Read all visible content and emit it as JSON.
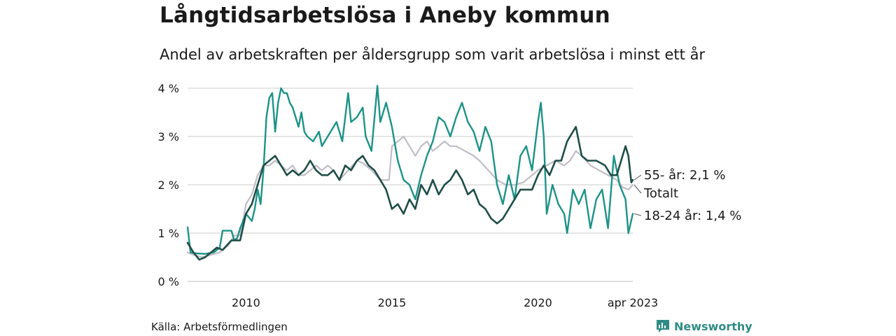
{
  "title": "Långtidsarbetslösa i Aneby kommun",
  "subtitle": "Andel av arbetskraften per åldersgrupp som varit arbetslösa i minst ett år",
  "source": "Källa: Arbetsförmedlingen",
  "brand": "Newsworthy",
  "colors": {
    "total": "#c1bdc7",
    "youth": "#1c9386",
    "senior": "#1e4e47",
    "brand": "#2f8c84"
  },
  "chart_data": {
    "type": "line",
    "ylim": [
      0,
      4
    ],
    "y_ticks": [
      {
        "value": 0,
        "label": "0 %"
      },
      {
        "value": 1,
        "label": "1 %"
      },
      {
        "value": 2,
        "label": "2 %"
      },
      {
        "value": 3,
        "label": "3 %"
      },
      {
        "value": 4,
        "label": "4 %"
      }
    ],
    "x_ticks": [
      {
        "value": 2010.0,
        "label": "2010"
      },
      {
        "value": 2015.0,
        "label": "2015"
      },
      {
        "value": 2020.0,
        "label": "2020"
      },
      {
        "value": 2023.25,
        "label": "apr 2023"
      }
    ],
    "xlim": [
      2008.0,
      2023.25
    ],
    "series": [
      {
        "key": "total",
        "end_label": "Totalt",
        "points": [
          [
            2008.0,
            0.6
          ],
          [
            2008.2,
            0.55
          ],
          [
            2008.5,
            0.5
          ],
          [
            2008.8,
            0.55
          ],
          [
            2009.1,
            0.6
          ],
          [
            2009.4,
            0.75
          ],
          [
            2009.6,
            0.95
          ],
          [
            2009.8,
            0.95
          ],
          [
            2010.0,
            1.6
          ],
          [
            2010.2,
            1.8
          ],
          [
            2010.4,
            2.2
          ],
          [
            2010.6,
            2.4
          ],
          [
            2010.8,
            2.4
          ],
          [
            2011.0,
            2.5
          ],
          [
            2011.2,
            2.4
          ],
          [
            2011.4,
            2.3
          ],
          [
            2011.6,
            2.4
          ],
          [
            2011.8,
            2.2
          ],
          [
            2012.0,
            2.2
          ],
          [
            2012.2,
            2.3
          ],
          [
            2012.4,
            2.4
          ],
          [
            2012.6,
            2.3
          ],
          [
            2012.8,
            2.4
          ],
          [
            2013.0,
            2.3
          ],
          [
            2013.2,
            2.1
          ],
          [
            2013.5,
            2.3
          ],
          [
            2013.8,
            2.5
          ],
          [
            2014.0,
            2.45
          ],
          [
            2014.3,
            2.3
          ],
          [
            2014.6,
            2.1
          ],
          [
            2014.9,
            2.1
          ],
          [
            2015.0,
            2.8
          ],
          [
            2015.2,
            2.9
          ],
          [
            2015.4,
            3.0
          ],
          [
            2015.6,
            2.8
          ],
          [
            2015.8,
            2.6
          ],
          [
            2016.0,
            2.8
          ],
          [
            2016.2,
            2.9
          ],
          [
            2016.4,
            2.7
          ],
          [
            2016.6,
            2.8
          ],
          [
            2016.8,
            2.9
          ],
          [
            2017.0,
            2.8
          ],
          [
            2017.2,
            2.8
          ],
          [
            2017.5,
            2.7
          ],
          [
            2017.8,
            2.6
          ],
          [
            2018.0,
            2.5
          ],
          [
            2018.3,
            2.3
          ],
          [
            2018.6,
            2.1
          ],
          [
            2018.9,
            2.0
          ],
          [
            2019.2,
            2.0
          ],
          [
            2019.5,
            2.05
          ],
          [
            2019.8,
            2.2
          ],
          [
            2020.0,
            2.3
          ],
          [
            2020.3,
            2.4
          ],
          [
            2020.6,
            2.5
          ],
          [
            2020.9,
            2.4
          ],
          [
            2021.1,
            2.5
          ],
          [
            2021.3,
            2.7
          ],
          [
            2021.5,
            2.6
          ],
          [
            2021.8,
            2.4
          ],
          [
            2022.1,
            2.3
          ],
          [
            2022.4,
            2.2
          ],
          [
            2022.7,
            2.1
          ],
          [
            2022.9,
            1.95
          ],
          [
            2023.1,
            1.9
          ],
          [
            2023.25,
            2.0
          ]
        ]
      },
      {
        "key": "youth",
        "end_label": "18-24 år: 1,4 %",
        "points": [
          [
            2008.0,
            1.12
          ],
          [
            2008.1,
            0.6
          ],
          [
            2008.3,
            0.58
          ],
          [
            2008.6,
            0.57
          ],
          [
            2008.9,
            0.6
          ],
          [
            2009.1,
            0.7
          ],
          [
            2009.2,
            1.05
          ],
          [
            2009.5,
            1.05
          ],
          [
            2009.6,
            0.85
          ],
          [
            2009.7,
            0.9
          ],
          [
            2009.8,
            1.1
          ],
          [
            2010.0,
            1.4
          ],
          [
            2010.2,
            1.25
          ],
          [
            2010.3,
            1.5
          ],
          [
            2010.4,
            1.9
          ],
          [
            2010.5,
            1.6
          ],
          [
            2010.6,
            2.3
          ],
          [
            2010.7,
            3.4
          ],
          [
            2010.8,
            3.8
          ],
          [
            2010.9,
            3.9
          ],
          [
            2011.0,
            3.1
          ],
          [
            2011.1,
            3.7
          ],
          [
            2011.2,
            4.0
          ],
          [
            2011.3,
            3.9
          ],
          [
            2011.4,
            3.9
          ],
          [
            2011.5,
            3.7
          ],
          [
            2011.6,
            3.6
          ],
          [
            2011.7,
            3.4
          ],
          [
            2011.8,
            3.2
          ],
          [
            2011.9,
            3.5
          ],
          [
            2012.0,
            3.1
          ],
          [
            2012.1,
            3.0
          ],
          [
            2012.3,
            2.9
          ],
          [
            2012.5,
            3.1
          ],
          [
            2012.6,
            2.8
          ],
          [
            2012.8,
            3.0
          ],
          [
            2013.0,
            3.2
          ],
          [
            2013.1,
            3.3
          ],
          [
            2013.3,
            2.9
          ],
          [
            2013.5,
            3.9
          ],
          [
            2013.6,
            3.3
          ],
          [
            2013.8,
            3.4
          ],
          [
            2014.0,
            3.6
          ],
          [
            2014.1,
            3.0
          ],
          [
            2014.3,
            2.7
          ],
          [
            2014.5,
            4.05
          ],
          [
            2014.6,
            3.3
          ],
          [
            2014.8,
            3.7
          ],
          [
            2015.0,
            3.2
          ],
          [
            2015.2,
            2.5
          ],
          [
            2015.4,
            2.1
          ],
          [
            2015.6,
            2.0
          ],
          [
            2015.8,
            1.7
          ],
          [
            2016.0,
            2.2
          ],
          [
            2016.2,
            2.6
          ],
          [
            2016.4,
            2.9
          ],
          [
            2016.6,
            3.4
          ],
          [
            2016.8,
            3.3
          ],
          [
            2017.0,
            3.0
          ],
          [
            2017.2,
            3.4
          ],
          [
            2017.4,
            3.7
          ],
          [
            2017.6,
            3.3
          ],
          [
            2017.8,
            3.1
          ],
          [
            2018.0,
            2.7
          ],
          [
            2018.2,
            3.2
          ],
          [
            2018.4,
            2.9
          ],
          [
            2018.6,
            2.0
          ],
          [
            2018.8,
            1.6
          ],
          [
            2019.0,
            2.2
          ],
          [
            2019.2,
            1.7
          ],
          [
            2019.4,
            2.6
          ],
          [
            2019.6,
            2.8
          ],
          [
            2019.8,
            2.3
          ],
          [
            2020.0,
            3.3
          ],
          [
            2020.1,
            3.7
          ],
          [
            2020.2,
            3.0
          ],
          [
            2020.3,
            1.4
          ],
          [
            2020.5,
            2.0
          ],
          [
            2020.7,
            1.6
          ],
          [
            2020.9,
            1.4
          ],
          [
            2021.0,
            1.0
          ],
          [
            2021.2,
            1.9
          ],
          [
            2021.4,
            1.6
          ],
          [
            2021.6,
            1.9
          ],
          [
            2021.8,
            1.1
          ],
          [
            2022.0,
            1.7
          ],
          [
            2022.2,
            1.9
          ],
          [
            2022.4,
            1.1
          ],
          [
            2022.6,
            2.6
          ],
          [
            2022.8,
            2.0
          ],
          [
            2023.0,
            1.7
          ],
          [
            2023.1,
            1.0
          ],
          [
            2023.25,
            1.4
          ]
        ]
      },
      {
        "key": "senior",
        "end_label": "55- år: 2,1 %",
        "points": [
          [
            2008.0,
            0.8
          ],
          [
            2008.2,
            0.6
          ],
          [
            2008.4,
            0.45
          ],
          [
            2008.6,
            0.5
          ],
          [
            2008.8,
            0.6
          ],
          [
            2009.0,
            0.7
          ],
          [
            2009.2,
            0.65
          ],
          [
            2009.5,
            0.85
          ],
          [
            2009.8,
            0.85
          ],
          [
            2010.0,
            1.4
          ],
          [
            2010.2,
            1.6
          ],
          [
            2010.3,
            1.8
          ],
          [
            2010.5,
            2.2
          ],
          [
            2010.6,
            2.4
          ],
          [
            2010.8,
            2.5
          ],
          [
            2011.0,
            2.6
          ],
          [
            2011.2,
            2.4
          ],
          [
            2011.4,
            2.2
          ],
          [
            2011.6,
            2.3
          ],
          [
            2011.8,
            2.2
          ],
          [
            2012.0,
            2.3
          ],
          [
            2012.2,
            2.5
          ],
          [
            2012.4,
            2.3
          ],
          [
            2012.6,
            2.2
          ],
          [
            2012.8,
            2.2
          ],
          [
            2013.0,
            2.3
          ],
          [
            2013.2,
            2.1
          ],
          [
            2013.4,
            2.4
          ],
          [
            2013.6,
            2.3
          ],
          [
            2013.8,
            2.5
          ],
          [
            2014.0,
            2.6
          ],
          [
            2014.2,
            2.4
          ],
          [
            2014.4,
            2.3
          ],
          [
            2014.6,
            2.1
          ],
          [
            2014.8,
            1.9
          ],
          [
            2015.0,
            1.5
          ],
          [
            2015.2,
            1.6
          ],
          [
            2015.4,
            1.4
          ],
          [
            2015.6,
            1.7
          ],
          [
            2015.8,
            1.5
          ],
          [
            2016.0,
            2.0
          ],
          [
            2016.2,
            1.8
          ],
          [
            2016.4,
            2.1
          ],
          [
            2016.6,
            1.8
          ],
          [
            2016.8,
            2.0
          ],
          [
            2017.0,
            2.1
          ],
          [
            2017.2,
            2.3
          ],
          [
            2017.4,
            2.1
          ],
          [
            2017.6,
            1.8
          ],
          [
            2017.8,
            1.9
          ],
          [
            2018.0,
            1.6
          ],
          [
            2018.2,
            1.5
          ],
          [
            2018.4,
            1.3
          ],
          [
            2018.6,
            1.2
          ],
          [
            2018.8,
            1.3
          ],
          [
            2019.0,
            1.5
          ],
          [
            2019.2,
            1.7
          ],
          [
            2019.4,
            1.9
          ],
          [
            2019.6,
            1.9
          ],
          [
            2019.8,
            1.9
          ],
          [
            2020.0,
            2.2
          ],
          [
            2020.2,
            2.4
          ],
          [
            2020.4,
            2.2
          ],
          [
            2020.6,
            2.5
          ],
          [
            2020.8,
            2.5
          ],
          [
            2021.0,
            2.9
          ],
          [
            2021.2,
            3.1
          ],
          [
            2021.3,
            3.2
          ],
          [
            2021.5,
            2.6
          ],
          [
            2021.7,
            2.5
          ],
          [
            2022.0,
            2.5
          ],
          [
            2022.3,
            2.4
          ],
          [
            2022.5,
            2.2
          ],
          [
            2022.7,
            2.2
          ],
          [
            2022.9,
            2.6
          ],
          [
            2023.0,
            2.8
          ],
          [
            2023.1,
            2.6
          ],
          [
            2023.2,
            2.05
          ],
          [
            2023.25,
            2.1
          ]
        ]
      }
    ]
  }
}
